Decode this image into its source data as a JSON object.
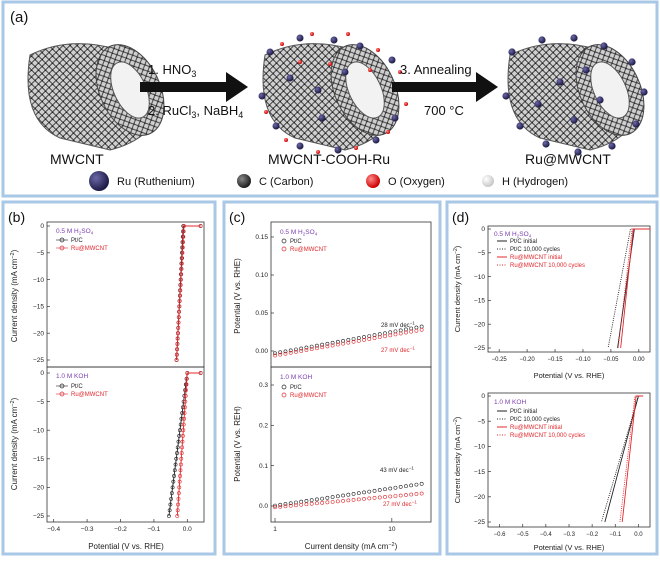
{
  "panel_a": {
    "letter": "(a)",
    "step1": "1. HNO",
    "step1_sub": "3",
    "step2": "2. RuCl",
    "step2_sub": "3",
    "step2_rest": ", NaBH",
    "step2_sub2": "4",
    "step3": "3. Annealing",
    "step3_temp": "700 °C",
    "label_left": "MWCNT",
    "label_mid": "MWCNT-COOH-Ru",
    "label_right": "Ru@MWCNT",
    "legend": [
      {
        "label": "Ru (Ruthenium)",
        "color": "#2a2656"
      },
      {
        "label": "C (Carbon)",
        "color": "#3a3a3a"
      },
      {
        "label": "O (Oxygen)",
        "color": "#e02020"
      },
      {
        "label": "H (Hydrogen)",
        "color": "#e8e8e8"
      }
    ]
  },
  "panel_b": {
    "letter": "(b)",
    "ylabel": "Current density (mA cm",
    "ylabel_sup": "−2",
    "ylabel_end": ")",
    "xlabel": "Potential (V vs. RHE)",
    "top": {
      "electrolyte": "0.5 M H",
      "e_sub1": "2",
      "e_mid": "SO",
      "e_sub2": "4",
      "legend": [
        "Pt/C",
        "Ru@MWCNT"
      ],
      "yticks": [
        "0",
        "−5",
        "−10",
        "−15",
        "−20",
        "−25"
      ]
    },
    "bottom": {
      "electrolyte": "1.0 M KOH",
      "legend": [
        "Pt/C",
        "Ru@MWCNT"
      ],
      "yticks": [
        "0",
        "−5",
        "−10",
        "−15",
        "−20",
        "−25"
      ]
    },
    "xticks": [
      "−0.4",
      "−0.3",
      "−0.2",
      "−0.1",
      "0.0"
    ]
  },
  "panel_c": {
    "letter": "(c)",
    "xlabel": "Current density (mA cm",
    "xlabel_sup": "−2",
    "xlabel_end": ")",
    "top": {
      "ylabel": "Potential (V vs. RHE)",
      "electrolyte": "0.5 M H",
      "e_sub1": "2",
      "e_mid": "SO",
      "e_sub2": "4",
      "legend": [
        "Pt/C",
        "Ru@MWCNT"
      ],
      "yticks": [
        "0.15",
        "0.10",
        "0.05",
        "0.00"
      ],
      "slope1": "28 mV dec",
      "slope2": "27 mV dec"
    },
    "bottom": {
      "ylabel": "Potential (V vs. REH)",
      "electrolyte": "1.0 M KOH",
      "legend": [
        "Pt/C",
        "Ru@MWCNT"
      ],
      "yticks": [
        "0.3",
        "0.2",
        "0.1",
        "0.0"
      ],
      "slope1": "43 mV dec",
      "slope2": "27 mV dec"
    },
    "slope_sup": "−1",
    "xticks": [
      "1",
      "10"
    ]
  },
  "panel_d": {
    "letter": "(d)",
    "ylabel": "Current density (mA cm",
    "ylabel_sup": "−2",
    "ylabel_end": ")",
    "xlabel": "Potential (V vs. RHE)",
    "top": {
      "electrolyte": "0.5 M H",
      "e_sub1": "2",
      "e_mid": "SO",
      "e_sub2": "4",
      "legend": [
        "Pt/C initial",
        "Pt/C 10,000 cycles",
        "Ru@MWCNT initial",
        "Ru@MWCNT 10,000 cycles"
      ],
      "yticks": [
        "0",
        "−5",
        "−10",
        "−15",
        "−20",
        "−25"
      ],
      "xticks": [
        "−0.25",
        "−0.20",
        "−0.15",
        "−0.10",
        "−0.05",
        "0.00"
      ]
    },
    "bottom": {
      "electrolyte": "1.0 M KOH",
      "legend": [
        "Pt/C initial",
        "Pt/C 10,000 cycles",
        "Ru@MWCNT initial",
        "Ru@MWCNT 10,000 cycles"
      ],
      "yticks": [
        "0",
        "−5",
        "−10",
        "−15",
        "−20",
        "−25"
      ],
      "xticks": [
        "−0.6",
        "−0.5",
        "−0.4",
        "−0.3",
        "−0.2",
        "−0.1",
        "0.0"
      ]
    }
  },
  "colors": {
    "frame": "#a9c7e6",
    "red": "#e0282d",
    "black": "#222222",
    "purple": "#7b3fb0"
  }
}
